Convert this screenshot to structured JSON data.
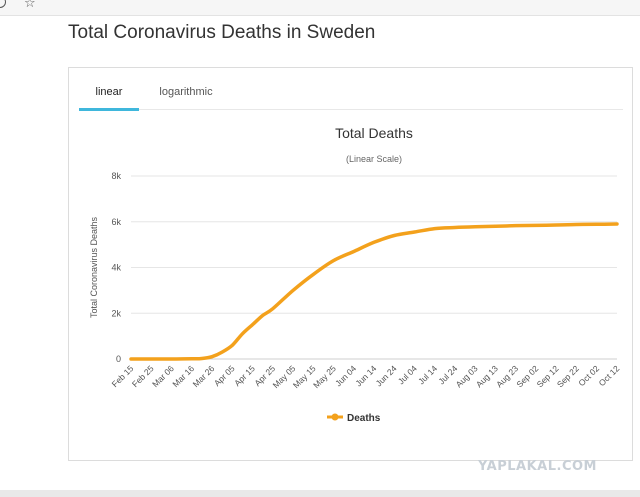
{
  "page": {
    "title": "Total Coronavirus Deaths in Sweden",
    "tabs": [
      {
        "label": "linear",
        "active": true
      },
      {
        "label": "logarithmic",
        "active": false
      }
    ],
    "watermark": "YAPLAKAL.COM"
  },
  "browser": {
    "icons": [
      "info-icon",
      "star-icon"
    ]
  },
  "colors": {
    "series": "#f3a11c",
    "active_tab": "#3fb7dc",
    "grid": "#e6e6e6"
  },
  "chart_data": {
    "type": "line",
    "title": "Total Deaths",
    "subtitle": "(Linear Scale)",
    "ylabel": "Total Coronavirus Deaths",
    "xlabel": "",
    "ylim": [
      0,
      8000
    ],
    "yticks": [
      0,
      2000,
      4000,
      6000,
      8000
    ],
    "ytick_labels": [
      "0",
      "2k",
      "4k",
      "6k",
      "8k"
    ],
    "x_tick_labels": [
      "Feb 15",
      "Feb 25",
      "Mar 06",
      "Mar 16",
      "Mar 26",
      "Apr 05",
      "Apr 15",
      "Apr 25",
      "May 05",
      "May 15",
      "May 25",
      "Jun 04",
      "Jun 14",
      "Jun 24",
      "Jul 04",
      "Jul 14",
      "Jul 24",
      "Aug 03",
      "Aug 13",
      "Aug 23",
      "Sep 02",
      "Sep 12",
      "Sep 22",
      "Oct 02",
      "Oct 12"
    ],
    "x": [
      "Feb 15",
      "Feb 25",
      "Mar 06",
      "Mar 16",
      "Mar 21",
      "Mar 26",
      "Mar 31",
      "Apr 05",
      "Apr 10",
      "Apr 15",
      "Apr 20",
      "Apr 25",
      "May 05",
      "May 15",
      "May 25",
      "Jun 04",
      "Jun 14",
      "Jun 24",
      "Jul 04",
      "Jul 14",
      "Jul 24",
      "Aug 03",
      "Aug 13",
      "Aug 23",
      "Sep 02",
      "Sep 12",
      "Sep 22",
      "Oct 02",
      "Oct 12"
    ],
    "series": [
      {
        "name": "Deaths",
        "values": [
          0,
          0,
          0,
          10,
          20,
          100,
          300,
          600,
          1100,
          1500,
          1900,
          2200,
          3000,
          3700,
          4300,
          4700,
          5100,
          5400,
          5550,
          5700,
          5750,
          5780,
          5800,
          5830,
          5840,
          5860,
          5880,
          5890,
          5900
        ]
      }
    ],
    "legend": {
      "position": "bottom-center"
    },
    "grid": {
      "y": true,
      "x": false
    }
  }
}
